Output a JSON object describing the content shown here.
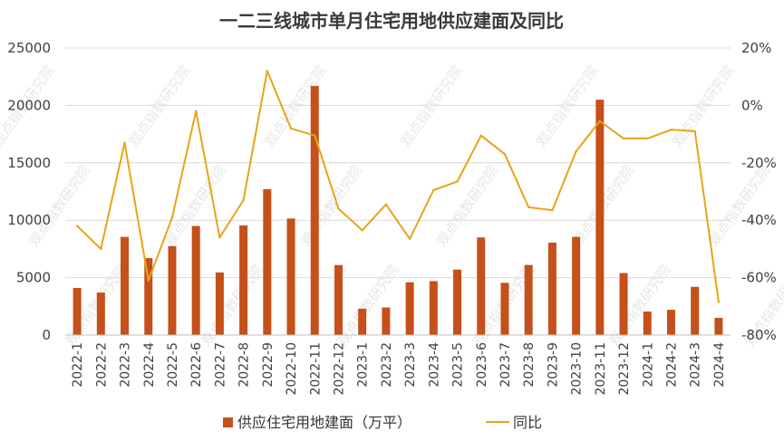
{
  "chart_data": {
    "type": "bar",
    "title": "一二三线城市单月住宅用地供应建面及同比",
    "categories": [
      "2022-1",
      "2022-2",
      "2022-3",
      "2022-4",
      "2022-5",
      "2022-6",
      "2022-7",
      "2022-8",
      "2022-9",
      "2022-10",
      "2022-11",
      "2022-12",
      "2023-1",
      "2023-2",
      "2023-3",
      "2023-4",
      "2023-5",
      "2023-6",
      "2023-7",
      "2023-8",
      "2023-9",
      "2023-10",
      "2023-11",
      "2023-12",
      "2024-1",
      "2024-2",
      "2024-3",
      "2024-4"
    ],
    "series": [
      {
        "name": "供应住宅用地建面（万平）",
        "type": "bar",
        "axis": "left",
        "color": "#C5501A",
        "values": [
          4100,
          3700,
          8550,
          6700,
          7750,
          9500,
          5450,
          9550,
          12700,
          10150,
          21700,
          6100,
          2300,
          2400,
          4600,
          4700,
          5700,
          8500,
          4550,
          6100,
          8050,
          8550,
          20500,
          5400,
          2050,
          2200,
          4200,
          1500
        ]
      },
      {
        "name": "同比",
        "type": "line",
        "axis": "right",
        "color": "#E8A319",
        "values": [
          -42,
          -50,
          -13,
          -61,
          -39,
          -2,
          -46,
          -33,
          12,
          -8,
          -10.5,
          -36,
          -43.5,
          -34.5,
          -46.5,
          -29.5,
          -26.5,
          -10.5,
          -17,
          -35.5,
          -36.5,
          -16,
          -5.5,
          -11.5,
          -11.5,
          -8.5,
          -9,
          -68.5
        ]
      }
    ],
    "y_left": {
      "min": 0,
      "max": 25000,
      "ticks": [
        "0",
        "5000",
        "10000",
        "15000",
        "20000",
        "25000"
      ]
    },
    "y_right": {
      "min": -80,
      "max": 20,
      "ticks": [
        "-80%",
        "-60%",
        "-40%",
        "-20%",
        "0%",
        "20%"
      ]
    },
    "grid": true,
    "legend_position": "bottom",
    "watermark": "观点指数研究院"
  }
}
